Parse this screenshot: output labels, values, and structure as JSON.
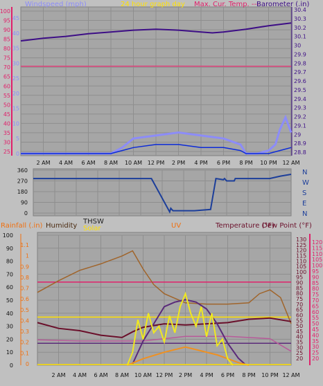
{
  "top_panel": {
    "header": {
      "left": "Windspeed (mph)",
      "center": "24 hour graph day",
      "mid": "Max. Cur. Temp. ---",
      "right": "Barometer (.in)"
    },
    "left_axis_ticks": [
      "100",
      "95",
      "90",
      "85",
      "80",
      "75",
      "70",
      "65",
      "60",
      "55",
      "50",
      "45",
      "40",
      "35",
      "30",
      "25"
    ],
    "wind_axis_ticks": [
      "45",
      "40",
      "35",
      "30",
      "25",
      "20",
      "15",
      "10",
      "5",
      "0"
    ],
    "baro_axis_ticks": [
      "30.4",
      "30.3",
      "30.2",
      "30.1",
      "30",
      "29.9",
      "29.8",
      "29.7",
      "29.6",
      "29.5",
      "29.4",
      "29.3",
      "29.2",
      "29.1",
      "29",
      "28.9",
      "28.8"
    ]
  },
  "mid_panel": {
    "left_axis_ticks": [
      "360",
      "270",
      "180",
      "90",
      "0"
    ],
    "compass": [
      "N",
      "W",
      "S",
      "E",
      "N"
    ]
  },
  "bottom_panel": {
    "header": {
      "rainfall": "Rainfall (.in)",
      "humidity": "Humidity",
      "thsw": "THSW",
      "solar": "Solar",
      "uv": "UV",
      "temperature": "Temperature (°F)",
      "dewpoint": "Dew Point (°F)"
    },
    "pct_ticks": [
      "100",
      "90",
      "80",
      "70",
      "60",
      "50",
      "40",
      "30",
      "20",
      "10",
      "0"
    ],
    "rain_ticks": [
      "1.1",
      "1",
      "0.9",
      "0.8",
      "0.7",
      "0.6",
      "0.5",
      "0.4",
      "0.3",
      "0.2",
      "0.1",
      "0"
    ],
    "dew_ticks": [
      "130",
      "125",
      "120",
      "115",
      "110",
      "105",
      "100",
      "95",
      "90",
      "85",
      "80",
      "75",
      "70",
      "65",
      "60",
      "55",
      "50",
      "45",
      "40",
      "35",
      "30",
      "25",
      "20"
    ],
    "temp_ticks": [
      "120",
      "115",
      "110",
      "105",
      "100",
      "95",
      "90",
      "85",
      "80",
      "75",
      "70",
      "65",
      "60",
      "55",
      "50",
      "45",
      "40",
      "35",
      "30",
      "25",
      "20"
    ]
  },
  "x_tick_labels": [
    "2 AM",
    "4 AM",
    "6 AM",
    "8 AM",
    "10 AM",
    "12 PM",
    "2 PM",
    "4 PM",
    "6 PM",
    "8 PM",
    "10 PM",
    "12 AM"
  ],
  "colors": {
    "panel_bg": "#a6a6a6",
    "frame_bg": "#c0c0c0",
    "barometer": "#3d0e86",
    "windspeed": "#8c8cf8",
    "wind_avg": "#0b2ad8",
    "wind_low": "#0a6a10",
    "temperature_top": "#e0407a",
    "wind_dir": "#1c3e9a",
    "humidity": "#a0642a",
    "temperature": "#6a0f2a",
    "dew_point": "#b85a9a",
    "thsw": "#5a2a7a",
    "solar": "#f0e820",
    "uv": "#f09020",
    "label_pink": "#e0206a",
    "label_yellow": "#ffe000",
    "label_orange": "#f07010"
  },
  "chart_data": [
    {
      "type": "line",
      "name": "wind-barometer",
      "x_range": [
        0,
        24
      ],
      "barometer": {
        "ylim": [
          28.8,
          30.4
        ],
        "x": [
          0,
          2,
          4,
          6,
          8,
          10,
          12,
          14,
          16,
          17,
          18,
          20,
          22,
          24
        ],
        "values": [
          30.05,
          30.08,
          30.1,
          30.13,
          30.15,
          30.17,
          30.18,
          30.17,
          30.15,
          30.14,
          30.15,
          30.18,
          30.22,
          30.25
        ]
      },
      "temperature_line": {
        "ylim": [
          25,
          100
        ],
        "x": [
          0,
          6,
          12,
          18,
          24
        ],
        "values": [
          70.5,
          70.5,
          70.6,
          70.5,
          70.5
        ]
      },
      "windspeed": {
        "ylim": [
          0,
          45
        ],
        "x": [
          0,
          8,
          9,
          10,
          12,
          14,
          16,
          18,
          19.5,
          20,
          21,
          22,
          22.6,
          23,
          23.5,
          24
        ],
        "values": [
          0,
          0,
          2,
          5,
          6,
          7,
          6,
          5,
          3,
          0,
          0,
          1,
          3,
          8,
          12,
          7
        ]
      },
      "wind_avg": {
        "ylim": [
          0,
          45
        ],
        "x": [
          0,
          8,
          9,
          10,
          12,
          14,
          16,
          18,
          19.5,
          20,
          22,
          23,
          24
        ],
        "values": [
          0,
          0,
          1,
          2,
          3,
          3,
          2,
          2,
          1,
          0,
          0,
          1,
          2
        ]
      }
    },
    {
      "type": "line",
      "name": "wind-direction",
      "ylim": [
        0,
        360
      ],
      "x": [
        0,
        6,
        9,
        11,
        12.7,
        12.8,
        13,
        15,
        16.5,
        17,
        17.7,
        17.8,
        18,
        18.7,
        18.8,
        20,
        22,
        23,
        24
      ],
      "values": [
        290,
        290,
        290,
        290,
        10,
        40,
        20,
        20,
        30,
        290,
        280,
        290,
        270,
        270,
        290,
        290,
        290,
        310,
        325
      ]
    },
    {
      "type": "line",
      "name": "temp-humidity-solar",
      "humidity": {
        "ylim": [
          0,
          100
        ],
        "x": [
          0,
          2,
          4,
          6,
          8,
          9,
          10,
          11,
          12,
          14,
          16,
          18,
          20,
          21,
          22,
          23,
          24
        ],
        "values": [
          56,
          65,
          73,
          78,
          84,
          88,
          74,
          62,
          55,
          48,
          47,
          47,
          48,
          55,
          58,
          52,
          32
        ]
      },
      "temperature": {
        "ylim": [
          20,
          130
        ],
        "x": [
          0,
          2,
          4,
          6,
          8,
          9,
          10,
          12,
          14,
          16,
          18,
          20,
          22,
          24
        ],
        "values": [
          56,
          51,
          49,
          45,
          43,
          48,
          52,
          55,
          54,
          55,
          56,
          59,
          60,
          57
        ]
      },
      "dew_point": {
        "ylim": [
          20,
          130
        ],
        "x": [
          0,
          4,
          8,
          10,
          12,
          14,
          16,
          18,
          20,
          22,
          24
        ],
        "values": [
          41,
          40,
          40,
          40,
          42,
          44,
          44,
          44,
          43,
          42,
          31
        ]
      },
      "thsw_line": {
        "ylim": [
          20,
          130
        ],
        "x": [
          0,
          4,
          8,
          9,
          10,
          12,
          14,
          16,
          18,
          20,
          24
        ],
        "values": [
          38,
          38,
          38,
          38,
          38,
          38,
          38,
          38,
          38,
          38,
          38
        ]
      },
      "pink_line": {
        "ylim": [
          0,
          100
        ],
        "x": [
          0,
          12,
          24
        ],
        "values": [
          64,
          64,
          64
        ]
      },
      "yellow_line": {
        "ylim": [
          0,
          100
        ],
        "x": [
          0,
          12,
          24
        ],
        "values": [
          37,
          37,
          37
        ]
      },
      "thsw_arc": {
        "ylim": [
          20,
          130
        ],
        "x": [
          9,
          10,
          11,
          12,
          13,
          14,
          15,
          16,
          17,
          18,
          19,
          19.6
        ],
        "values": [
          20,
          40,
          55,
          70,
          74,
          76,
          74,
          68,
          55,
          38,
          25,
          20
        ]
      },
      "solar": {
        "ylim": [
          0,
          100
        ],
        "x": [
          8.5,
          9,
          9.5,
          10,
          10.5,
          11,
          11.5,
          12,
          12.5,
          13,
          13.5,
          14,
          14.5,
          15,
          15.5,
          16,
          16.5,
          17,
          17.5,
          18,
          18.5
        ],
        "values": [
          0,
          10,
          35,
          20,
          40,
          25,
          30,
          18,
          38,
          25,
          45,
          55,
          40,
          30,
          45,
          22,
          40,
          15,
          20,
          5,
          0
        ]
      },
      "uv": {
        "ylim": [
          0,
          100
        ],
        "x": [
          8.5,
          10,
          12,
          13,
          14,
          15,
          16,
          17,
          18,
          19,
          20
        ],
        "values": [
          0,
          5,
          10,
          12,
          14,
          12,
          10,
          8,
          5,
          2,
          0
        ]
      }
    }
  ]
}
